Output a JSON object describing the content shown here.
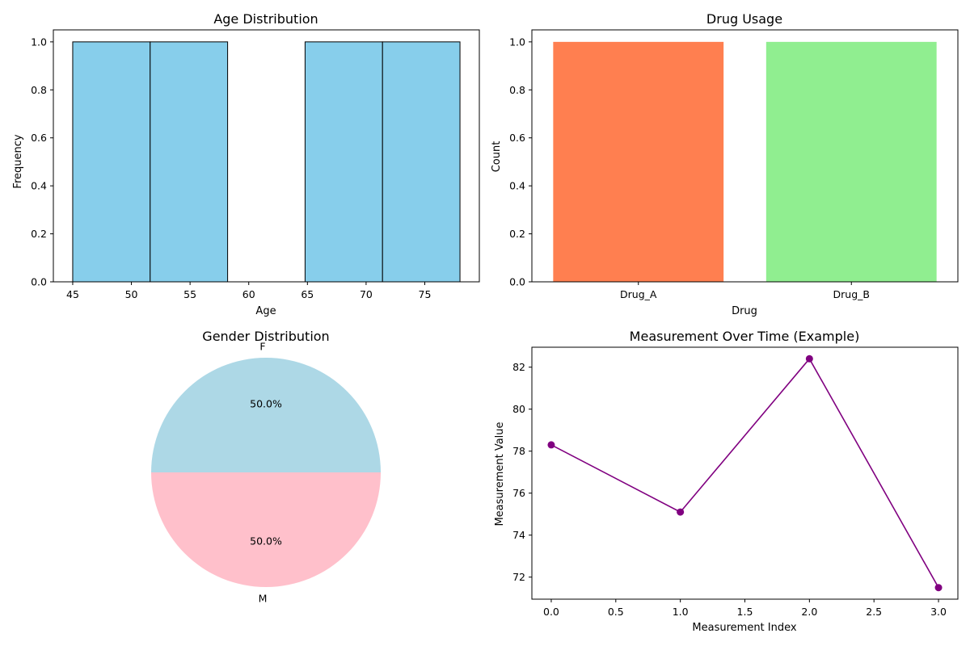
{
  "chart_data": [
    {
      "type": "bar",
      "subtype": "histogram",
      "title": "Age Distribution",
      "xlabel": "Age",
      "ylabel": "Frequency",
      "bins": [
        {
          "start": 45.0,
          "end": 51.6,
          "value": 1
        },
        {
          "start": 51.6,
          "end": 58.2,
          "value": 1
        },
        {
          "start": 58.2,
          "end": 64.8,
          "value": 0
        },
        {
          "start": 64.8,
          "end": 71.4,
          "value": 1
        },
        {
          "start": 71.4,
          "end": 78.0,
          "value": 1
        }
      ],
      "xlim": [
        43.35,
        79.65
      ],
      "ylim": [
        0,
        1.05
      ],
      "xticks": [
        45,
        50,
        55,
        60,
        65,
        70,
        75
      ],
      "yticks": [
        "0.0",
        "0.2",
        "0.4",
        "0.6",
        "0.8",
        "1.0"
      ],
      "color": "#87ceeb",
      "edgecolor": "#000000"
    },
    {
      "type": "bar",
      "title": "Drug Usage",
      "xlabel": "Drug",
      "ylabel": "Count",
      "categories": [
        "Drug_A",
        "Drug_B"
      ],
      "values": [
        1,
        1
      ],
      "colors": [
        "#ff7f50",
        "#90ee90"
      ],
      "ylim": [
        0,
        1.05
      ],
      "yticks": [
        "0.0",
        "0.2",
        "0.4",
        "0.6",
        "0.8",
        "1.0"
      ]
    },
    {
      "type": "pie",
      "title": "Gender Distribution",
      "slices": [
        {
          "label": "F",
          "value": 50.0,
          "pct_label": "50.0%",
          "color": "#add8e6"
        },
        {
          "label": "M",
          "value": 50.0,
          "pct_label": "50.0%",
          "color": "#ffc0cb"
        }
      ]
    },
    {
      "type": "line",
      "title": "Measurement Over Time (Example)",
      "xlabel": "Measurement Index",
      "ylabel": "Measurement Value",
      "x": [
        0,
        1,
        2,
        3
      ],
      "y": [
        78.3,
        75.1,
        82.4,
        71.5
      ],
      "xlim": [
        -0.15,
        3.15
      ],
      "ylim": [
        70.95,
        82.95
      ],
      "xticks": [
        "0.0",
        "0.5",
        "1.0",
        "1.5",
        "2.0",
        "2.5",
        "3.0"
      ],
      "yticks": [
        72,
        74,
        76,
        78,
        80,
        82
      ],
      "color": "#800080",
      "marker": "circle"
    }
  ]
}
